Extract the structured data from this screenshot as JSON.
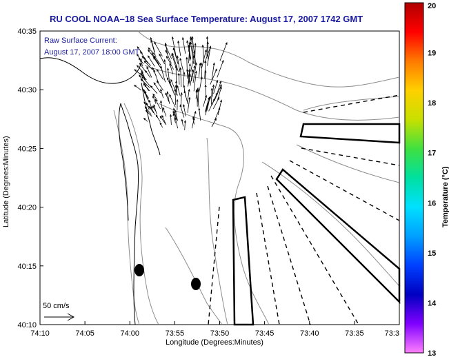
{
  "title": "RU COOL  NOAA–18  Sea Surface Temperature:  August 17, 2007 1742 GMT",
  "legend": {
    "line1": "Raw Surface Current:",
    "line2": "August 17, 2007 18:00 GMT"
  },
  "axes": {
    "xlabel": "Longitude (Degrees:Minutes)",
    "ylabel": "Latitude (Degrees:Minutes)",
    "xticks": [
      "74:10",
      "74:05",
      "74:00",
      "73:55",
      "73:50",
      "73:45",
      "73:40",
      "73:35",
      "73:3"
    ],
    "yticks": [
      "40:35",
      "40:30",
      "40:25",
      "40:20",
      "40:15",
      "40:10"
    ]
  },
  "colorbar": {
    "label": "Temperature (°C)",
    "ticks": [
      "20",
      "19",
      "18",
      "17",
      "16",
      "15",
      "14",
      "13"
    ],
    "colors": [
      "#b00000",
      "#ff0000",
      "#ff7a00",
      "#ffd000",
      "#c8e000",
      "#40e040",
      "#00e0a0",
      "#00e0ff",
      "#00a0ff",
      "#0040ff",
      "#0000c0",
      "#8000ff",
      "#ff80ff"
    ]
  },
  "scale_vector": {
    "label": "50 cm/s"
  },
  "colors": {
    "title": "#1a1aa0",
    "legend_text": "#1a1aa0",
    "coast": "#000000",
    "bathymetry": "#8c8c8c"
  }
}
